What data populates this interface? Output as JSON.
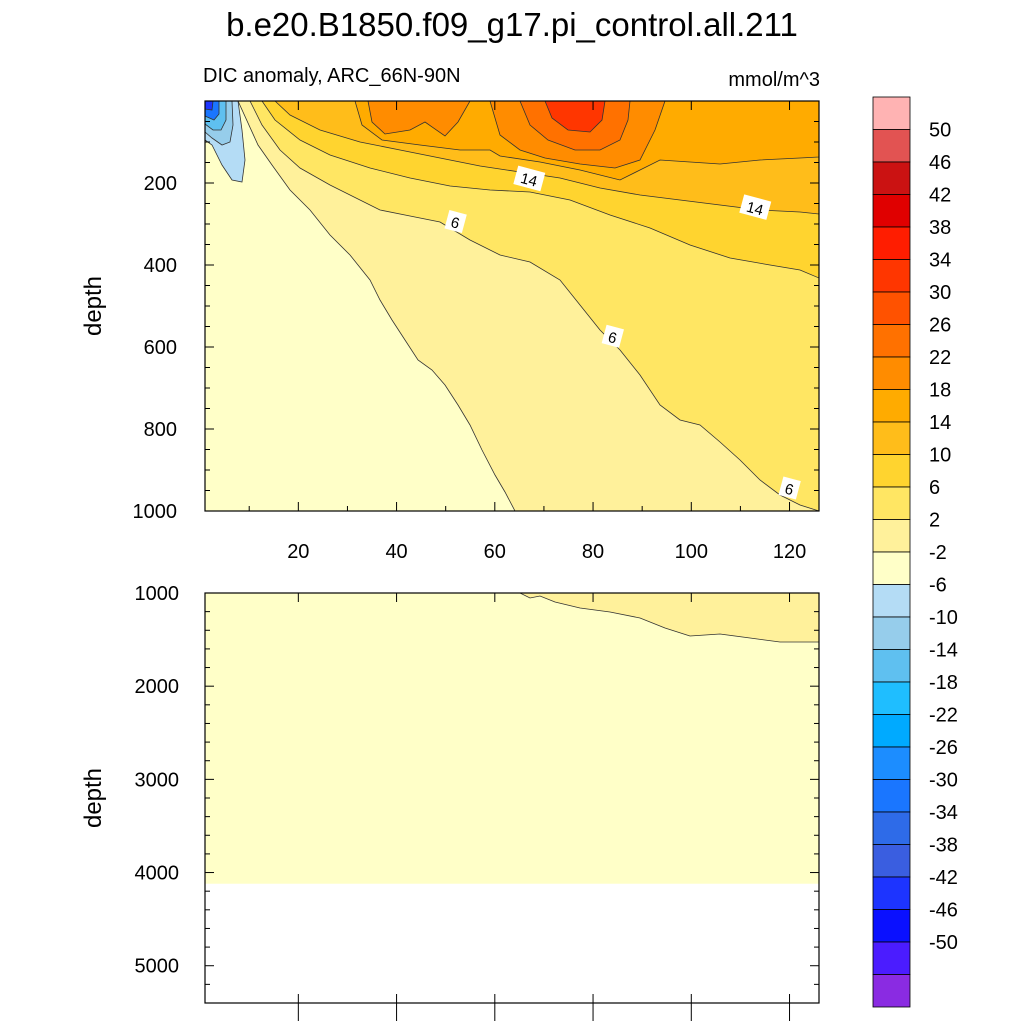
{
  "page": {
    "title": "b.e20.B1850.f09_g17.pi_control.all.211",
    "subtitle_left": "DIC anomaly, ARC_66N-90N",
    "subtitle_right": "mmol/m^3"
  },
  "chart_data": [
    {
      "type": "contour",
      "panel": "upper",
      "ylabel": "depth",
      "xlabel": "",
      "xlim": [
        1,
        126
      ],
      "ylim": [
        0,
        1000
      ],
      "y_reversed": true,
      "x_ticks": [
        20,
        40,
        60,
        80,
        100,
        120
      ],
      "y_ticks": [
        200,
        400,
        600,
        800,
        1000
      ],
      "contour_labels": [
        {
          "text": "14",
          "x": 67,
          "depth": 190
        },
        {
          "text": "14",
          "x": 113,
          "depth": 260
        },
        {
          "text": "6",
          "x": 52,
          "depth": 295
        },
        {
          "text": "6",
          "x": 84,
          "depth": 575
        },
        {
          "text": "6",
          "x": 120,
          "depth": 945
        }
      ]
    },
    {
      "type": "contour",
      "panel": "lower",
      "ylabel": "depth",
      "xlabel": "",
      "xlim": [
        1,
        126
      ],
      "ylim": [
        1000,
        5400
      ],
      "y_reversed": true,
      "y_ticks": [
        1000,
        2000,
        3000,
        4000,
        5000
      ],
      "ocean_floor_depth": 4120
    }
  ],
  "colorbar": {
    "colors": [
      "#ffb3b3",
      "#e25352",
      "#cb1212",
      "#e00000",
      "#ff1d00",
      "#ff3600",
      "#ff5200",
      "#ff7100",
      "#ff8c00",
      "#ffab00",
      "#ffbd1a",
      "#ffd42f",
      "#ffe663",
      "#fff19b",
      "#ffffc8",
      "#b4dcf5",
      "#96cdeb",
      "#5fc0f0",
      "#1fbeff",
      "#00aaff",
      "#1c8dff",
      "#1a76ff",
      "#2e6be8",
      "#3a5ee0",
      "#1d34ff",
      "#0a10ff",
      "#4b1cff",
      "#8a2be2"
    ],
    "labels": [
      "50",
      "46",
      "42",
      "38",
      "34",
      "30",
      "26",
      "22",
      "18",
      "14",
      "10",
      "6",
      "2",
      "-2",
      "-6",
      "-10",
      "-14",
      "-18",
      "-22",
      "-26",
      "-30",
      "-34",
      "-38",
      "-42",
      "-46",
      "-50"
    ]
  }
}
